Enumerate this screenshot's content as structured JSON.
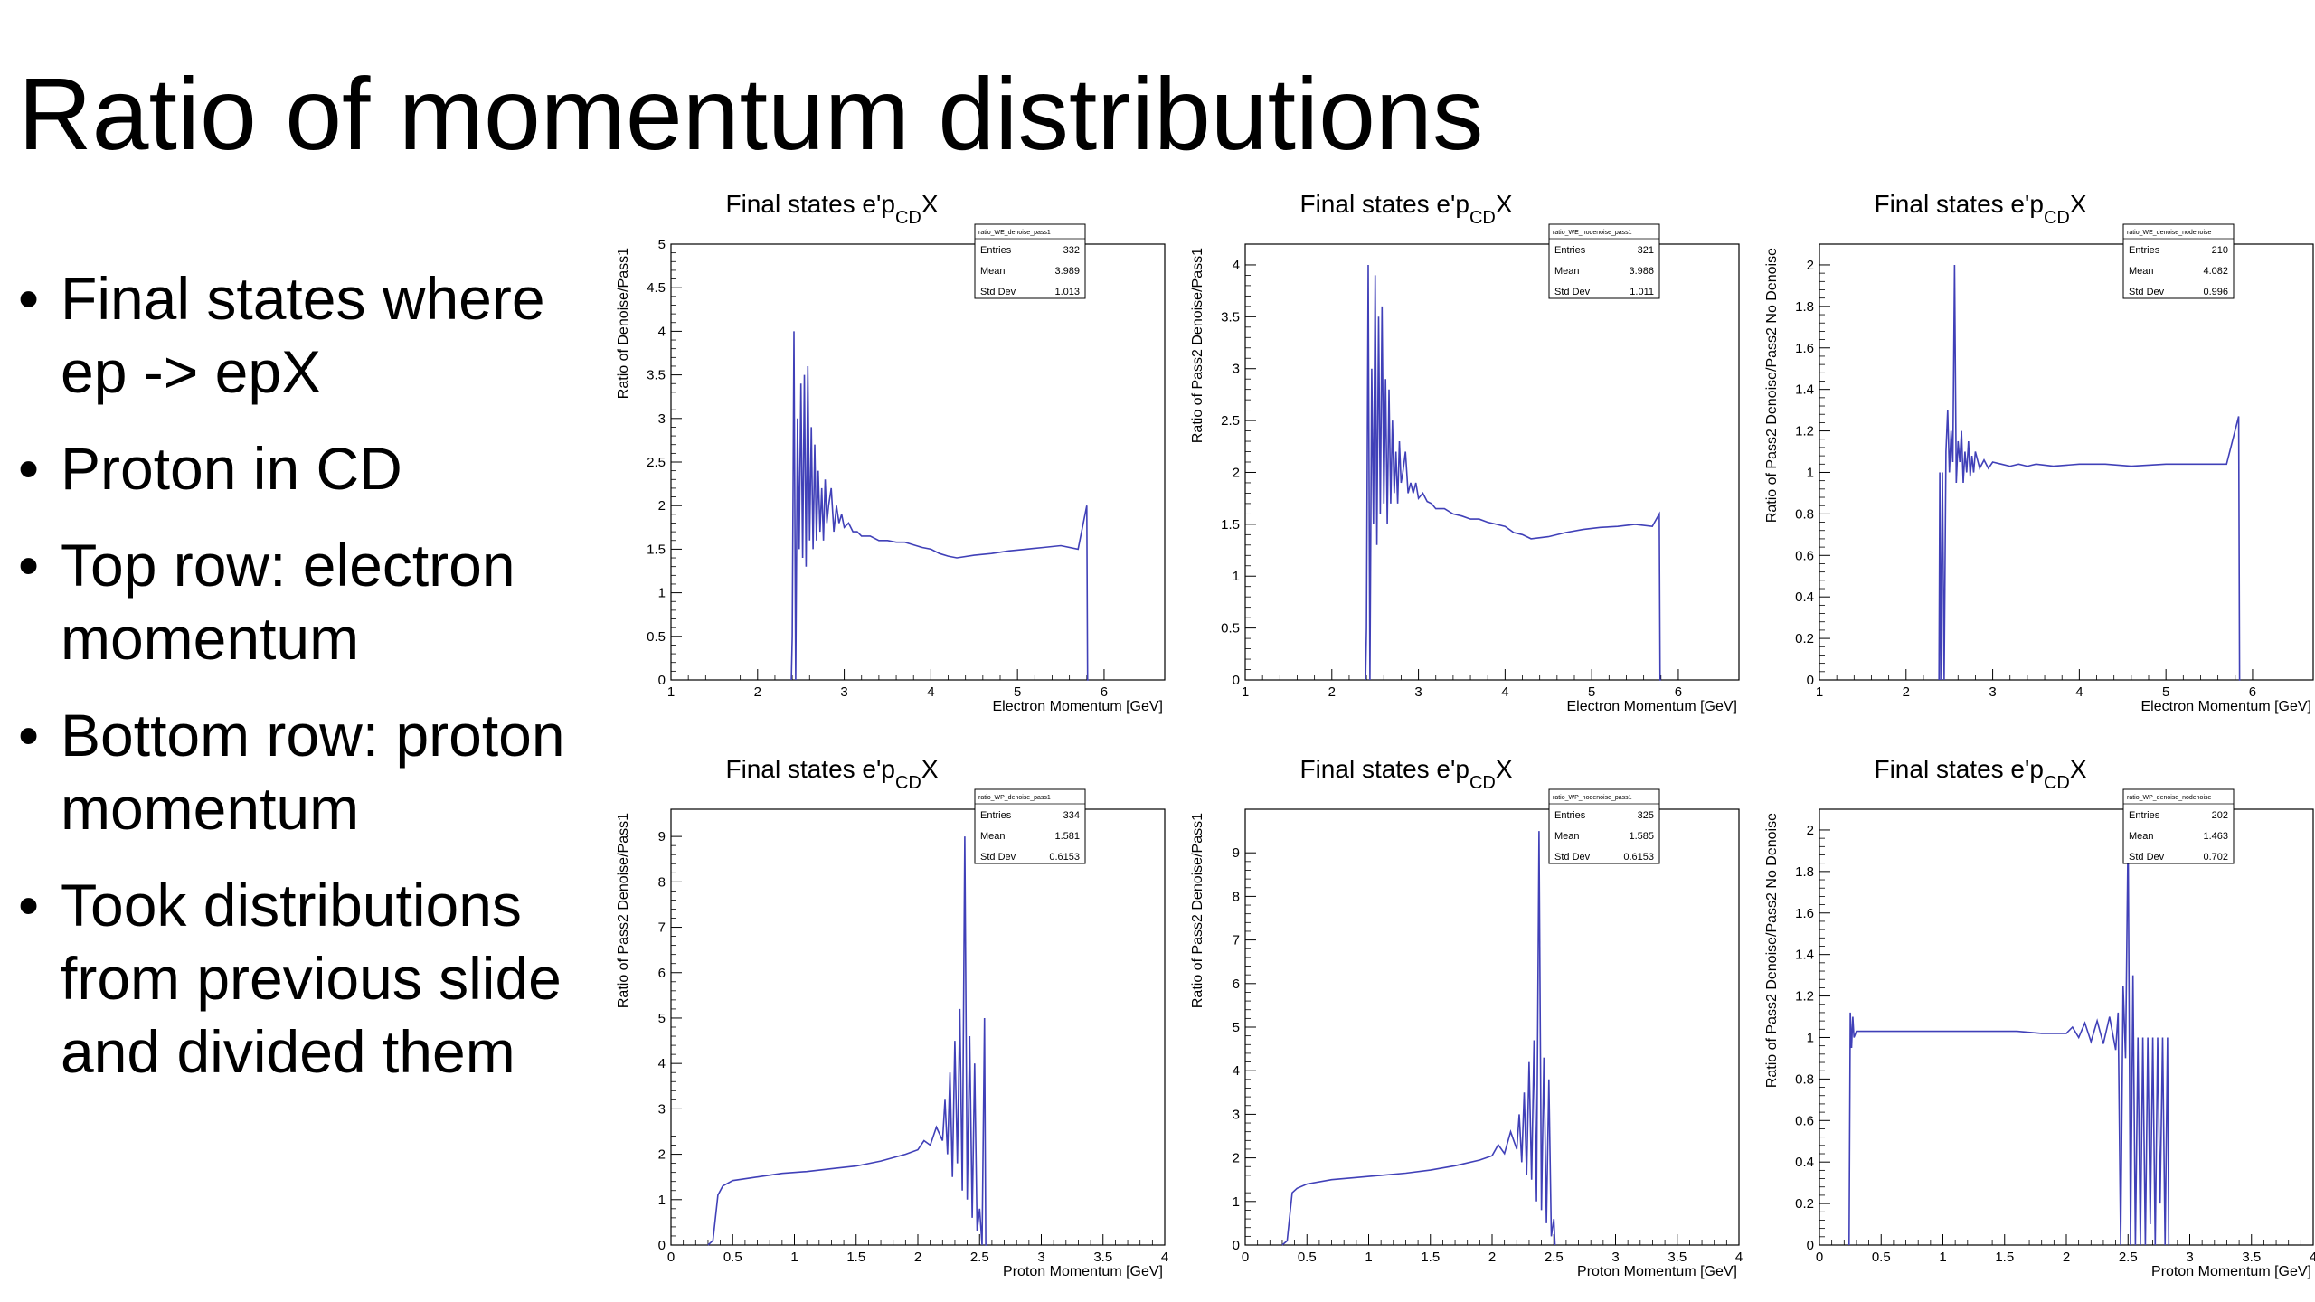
{
  "slide": {
    "title": "Ratio of momentum distributions",
    "bullets": [
      "Final states where ep -> epX",
      "Proton in CD",
      "Top row: electron momentum",
      "Bottom row: proton momentum",
      "Took distributions from previous slide and divided them"
    ]
  },
  "colors": {
    "line": "#4040b8",
    "frame": "#000000",
    "background": "#ffffff"
  },
  "chart_data": [
    {
      "type": "line",
      "title": "Final states e'p_CD X",
      "title_main": "Final states e'p",
      "title_sub": "CD",
      "title_end": "X",
      "xlabel": "Electron Momentum [GeV]",
      "ylabel": "Ratio of Denoise/Pass1",
      "xlim": [
        1,
        6.7
      ],
      "ylim": [
        0,
        5
      ],
      "xticks": [
        1,
        2,
        3,
        4,
        5,
        6
      ],
      "yticks": [
        0,
        0.5,
        1,
        1.5,
        2,
        2.5,
        3,
        3.5,
        4,
        4.5,
        5
      ],
      "xtick_labels": [
        "1",
        "2",
        "3",
        "4",
        "5",
        "6"
      ],
      "ytick_labels": [
        "0",
        "0.5",
        "1",
        "1.5",
        "2",
        "2.5",
        "3",
        "3.5",
        "4",
        "4.5",
        "5"
      ],
      "stats": {
        "name": "ratio_WE_denoise_pass1",
        "entries_label": "Entries",
        "entries": "332",
        "mean_label": "Mean",
        "mean": "3.989",
        "std_label": "Std Dev",
        "std": "1.013"
      },
      "x": [
        2.39,
        2.4,
        2.42,
        2.44,
        2.46,
        2.48,
        2.5,
        2.52,
        2.54,
        2.56,
        2.58,
        2.6,
        2.62,
        2.64,
        2.66,
        2.68,
        2.7,
        2.72,
        2.74,
        2.76,
        2.78,
        2.8,
        2.82,
        2.85,
        2.88,
        2.91,
        2.94,
        2.97,
        3.0,
        3.05,
        3.1,
        3.15,
        3.2,
        3.3,
        3.4,
        3.5,
        3.6,
        3.7,
        3.8,
        3.9,
        4.0,
        4.1,
        4.2,
        4.3,
        4.5,
        4.7,
        4.9,
        5.1,
        5.3,
        5.5,
        5.7,
        5.8,
        5.81,
        5.82
      ],
      "y": [
        0,
        0.5,
        4.0,
        0,
        3.0,
        1.5,
        3.4,
        1.4,
        3.5,
        1.3,
        3.6,
        1.6,
        2.9,
        1.5,
        2.7,
        1.6,
        2.4,
        1.7,
        2.2,
        1.6,
        2.3,
        1.8,
        2.0,
        2.2,
        1.7,
        2.0,
        1.8,
        1.9,
        1.75,
        1.8,
        1.7,
        1.7,
        1.65,
        1.65,
        1.6,
        1.6,
        1.58,
        1.58,
        1.55,
        1.52,
        1.5,
        1.45,
        1.42,
        1.4,
        1.43,
        1.45,
        1.48,
        1.5,
        1.52,
        1.54,
        1.5,
        2.0,
        0,
        0
      ]
    },
    {
      "type": "line",
      "title": "Final states e'p_CD X",
      "title_main": "Final states e'p",
      "title_sub": "CD",
      "title_end": "X",
      "xlabel": "Electron Momentum [GeV]",
      "ylabel": "Ratio of Pass2 Denoise/Pass1",
      "xlim": [
        1,
        6.7
      ],
      "ylim": [
        0,
        4.2
      ],
      "xticks": [
        1,
        2,
        3,
        4,
        5,
        6
      ],
      "yticks": [
        0,
        0.5,
        1,
        1.5,
        2,
        2.5,
        3,
        3.5,
        4
      ],
      "xtick_labels": [
        "1",
        "2",
        "3",
        "4",
        "5",
        "6"
      ],
      "ytick_labels": [
        "0",
        "0.5",
        "1",
        "1.5",
        "2",
        "2.5",
        "3",
        "3.5",
        "4"
      ],
      "stats": {
        "name": "ratio_WE_nodenoise_pass1",
        "entries_label": "Entries",
        "entries": "321",
        "mean_label": "Mean",
        "mean": "3.986",
        "std_label": "Std Dev",
        "std": "1.011"
      },
      "x": [
        2.39,
        2.4,
        2.42,
        2.44,
        2.46,
        2.48,
        2.5,
        2.52,
        2.54,
        2.56,
        2.58,
        2.6,
        2.62,
        2.64,
        2.66,
        2.68,
        2.7,
        2.72,
        2.74,
        2.76,
        2.78,
        2.8,
        2.82,
        2.85,
        2.88,
        2.91,
        2.94,
        2.97,
        3.0,
        3.05,
        3.1,
        3.15,
        3.2,
        3.3,
        3.4,
        3.5,
        3.6,
        3.7,
        3.8,
        3.9,
        4.0,
        4.1,
        4.2,
        4.3,
        4.5,
        4.7,
        4.9,
        5.1,
        5.3,
        5.5,
        5.7,
        5.78,
        5.79,
        5.8
      ],
      "y": [
        0,
        0.5,
        4.0,
        0,
        3.0,
        1.5,
        3.9,
        1.3,
        3.5,
        1.6,
        3.6,
        1.7,
        2.9,
        1.5,
        2.8,
        1.7,
        2.5,
        1.8,
        2.2,
        1.7,
        2.3,
        1.9,
        2.0,
        2.2,
        1.8,
        1.9,
        1.8,
        1.9,
        1.75,
        1.8,
        1.72,
        1.7,
        1.65,
        1.65,
        1.6,
        1.58,
        1.55,
        1.55,
        1.52,
        1.5,
        1.48,
        1.42,
        1.4,
        1.36,
        1.38,
        1.42,
        1.45,
        1.47,
        1.48,
        1.5,
        1.48,
        1.6,
        0,
        0
      ]
    },
    {
      "type": "line",
      "title": "Final states e'p_CD X",
      "title_main": "Final states e'p",
      "title_sub": "CD",
      "title_end": "X",
      "xlabel": "Electron Momentum [GeV]",
      "ylabel": "Ratio of Pass2 Denoise/Pass2 No Denoise",
      "xlim": [
        1,
        6.7
      ],
      "ylim": [
        0,
        2.1
      ],
      "xticks": [
        1,
        2,
        3,
        4,
        5,
        6
      ],
      "yticks": [
        0,
        0.2,
        0.4,
        0.6,
        0.8,
        1,
        1.2,
        1.4,
        1.6,
        1.8,
        2
      ],
      "xtick_labels": [
        "1",
        "2",
        "3",
        "4",
        "5",
        "6"
      ],
      "ytick_labels": [
        "0",
        "0.2",
        "0.4",
        "0.6",
        "0.8",
        "1",
        "1.2",
        "1.4",
        "1.6",
        "1.8",
        "2"
      ],
      "stats": {
        "name": "ratio_WE_denoise_nodenoise",
        "entries_label": "Entries",
        "entries": "210",
        "mean_label": "Mean",
        "mean": "4.082",
        "std_label": "Std Dev",
        "std": "0.996"
      },
      "x": [
        2.38,
        2.39,
        2.4,
        2.42,
        2.44,
        2.46,
        2.48,
        2.5,
        2.52,
        2.54,
        2.56,
        2.58,
        2.6,
        2.62,
        2.64,
        2.66,
        2.68,
        2.7,
        2.72,
        2.74,
        2.76,
        2.78,
        2.8,
        2.85,
        2.9,
        2.95,
        3.0,
        3.1,
        3.2,
        3.3,
        3.4,
        3.5,
        3.7,
        4.0,
        4.3,
        4.6,
        5.0,
        5.4,
        5.7,
        5.84,
        5.85,
        5.86
      ],
      "y": [
        0,
        1.0,
        0,
        1.0,
        0,
        1.1,
        1.3,
        1.0,
        1.2,
        1.05,
        2.0,
        0.95,
        1.15,
        1.05,
        1.2,
        0.95,
        1.1,
        1.0,
        1.15,
        0.98,
        1.08,
        1.0,
        1.1,
        1.02,
        1.06,
        1.02,
        1.05,
        1.04,
        1.03,
        1.04,
        1.03,
        1.04,
        1.03,
        1.04,
        1.04,
        1.03,
        1.04,
        1.04,
        1.04,
        1.27,
        0,
        0
      ]
    },
    {
      "type": "line",
      "title": "Final states e'p_CD X",
      "title_main": "Final states e'p",
      "title_sub": "CD",
      "title_end": "X",
      "xlabel": "Proton Momentum [GeV]",
      "ylabel": "Ratio of Pass2 Denoise/Pass1",
      "xlim": [
        0,
        4
      ],
      "ylim": [
        0,
        9.6
      ],
      "xticks": [
        0,
        0.5,
        1,
        1.5,
        2,
        2.5,
        3,
        3.5,
        4
      ],
      "yticks": [
        0,
        1,
        2,
        3,
        4,
        5,
        6,
        7,
        8,
        9
      ],
      "xtick_labels": [
        "0",
        "0.5",
        "1",
        "1.5",
        "2",
        "2.5",
        "3",
        "3.5",
        "4"
      ],
      "ytick_labels": [
        "0",
        "1",
        "2",
        "3",
        "4",
        "5",
        "6",
        "7",
        "8",
        "9"
      ],
      "stats": {
        "name": "ratio_WP_denoise_pass1",
        "entries_label": "Entries",
        "entries": "334",
        "mean_label": "Mean",
        "mean": "1.581",
        "std_label": "Std Dev",
        "std": "0.6153"
      },
      "x": [
        0.3,
        0.34,
        0.38,
        0.42,
        0.5,
        0.7,
        0.9,
        1.1,
        1.3,
        1.5,
        1.7,
        1.9,
        2.0,
        2.05,
        2.1,
        2.15,
        2.2,
        2.22,
        2.24,
        2.26,
        2.28,
        2.3,
        2.32,
        2.34,
        2.36,
        2.38,
        2.4,
        2.42,
        2.44,
        2.46,
        2.48,
        2.5,
        2.52,
        2.54,
        2.55,
        2.56
      ],
      "y": [
        0,
        0.1,
        1.1,
        1.3,
        1.42,
        1.5,
        1.58,
        1.62,
        1.68,
        1.74,
        1.85,
        2.0,
        2.1,
        2.3,
        2.2,
        2.6,
        2.3,
        3.2,
        2.0,
        3.8,
        1.5,
        4.5,
        1.8,
        5.2,
        1.2,
        9.0,
        1.0,
        4.6,
        0.6,
        4.0,
        0.3,
        0.8,
        0,
        5.0,
        0,
        0
      ]
    },
    {
      "type": "line",
      "title": "Final states e'p_CD X",
      "title_main": "Final states e'p",
      "title_sub": "CD",
      "title_end": "X",
      "xlabel": "Proton Momentum [GeV]",
      "ylabel": "Ratio of Pass2 Denoise/Pass1",
      "xlim": [
        0,
        4
      ],
      "ylim": [
        0,
        10
      ],
      "xticks": [
        0,
        0.5,
        1,
        1.5,
        2,
        2.5,
        3,
        3.5,
        4
      ],
      "yticks": [
        0,
        1,
        2,
        3,
        4,
        5,
        6,
        7,
        8,
        9
      ],
      "xtick_labels": [
        "0",
        "0.5",
        "1",
        "1.5",
        "2",
        "2.5",
        "3",
        "3.5",
        "4"
      ],
      "ytick_labels": [
        "0",
        "1",
        "2",
        "3",
        "4",
        "5",
        "6",
        "7",
        "8",
        "9"
      ],
      "stats": {
        "name": "ratio_WP_nodenoise_pass1",
        "entries_label": "Entries",
        "entries": "325",
        "mean_label": "Mean",
        "mean": "1.585",
        "std_label": "Std Dev",
        "std": "0.6153"
      },
      "x": [
        0.3,
        0.34,
        0.38,
        0.42,
        0.5,
        0.7,
        0.9,
        1.1,
        1.3,
        1.5,
        1.7,
        1.9,
        2.0,
        2.05,
        2.1,
        2.15,
        2.2,
        2.22,
        2.24,
        2.26,
        2.28,
        2.3,
        2.32,
        2.34,
        2.36,
        2.38,
        2.4,
        2.42,
        2.44,
        2.46,
        2.48,
        2.5,
        2.51
      ],
      "y": [
        0,
        0.1,
        1.2,
        1.3,
        1.4,
        1.5,
        1.55,
        1.6,
        1.65,
        1.72,
        1.82,
        1.95,
        2.05,
        2.3,
        2.1,
        2.6,
        2.2,
        3.0,
        1.9,
        3.5,
        1.6,
        4.2,
        1.5,
        4.7,
        1.0,
        9.5,
        0.8,
        4.3,
        0.5,
        3.8,
        0.2,
        0.6,
        0
      ]
    },
    {
      "type": "line",
      "title": "Final states e'p_CD X",
      "title_main": "Final states e'p",
      "title_sub": "CD",
      "title_end": "X",
      "xlabel": "Proton Momentum [GeV]",
      "ylabel": "Ratio of Pass2 Denoise/Pass2 No Denoise",
      "xlim": [
        0,
        4
      ],
      "ylim": [
        0,
        2.1
      ],
      "xticks": [
        0,
        0.5,
        1,
        1.5,
        2,
        2.5,
        3,
        3.5,
        4
      ],
      "yticks": [
        0,
        0.2,
        0.4,
        0.6,
        0.8,
        1,
        1.2,
        1.4,
        1.6,
        1.8,
        2
      ],
      "xtick_labels": [
        "0",
        "0.5",
        "1",
        "1.5",
        "2",
        "2.5",
        "3",
        "3.5",
        "4"
      ],
      "ytick_labels": [
        "0",
        "0.2",
        "0.4",
        "0.6",
        "0.8",
        "1",
        "1.2",
        "1.4",
        "1.6",
        "1.8",
        "2"
      ],
      "stats": {
        "name": "ratio_WP_denoise_nodenoise",
        "entries_label": "Entries",
        "entries": "202",
        "mean_label": "Mean",
        "mean": "1.463",
        "std_label": "Std Dev",
        "std": "0.702"
      },
      "x": [
        0.24,
        0.25,
        0.26,
        0.27,
        0.28,
        0.3,
        0.4,
        0.6,
        0.8,
        1.0,
        1.2,
        1.4,
        1.6,
        1.8,
        2.0,
        2.05,
        2.1,
        2.15,
        2.2,
        2.25,
        2.3,
        2.35,
        2.4,
        2.42,
        2.44,
        2.46,
        2.48,
        2.5,
        2.52,
        2.54,
        2.56,
        2.58,
        2.6,
        2.62,
        2.64,
        2.66,
        2.68,
        2.7,
        2.72,
        2.74,
        2.76,
        2.78,
        2.8,
        2.82,
        2.83
      ],
      "y": [
        0,
        1.12,
        0.95,
        1.1,
        1.0,
        1.03,
        1.03,
        1.03,
        1.03,
        1.03,
        1.03,
        1.03,
        1.03,
        1.02,
        1.02,
        1.05,
        1.0,
        1.07,
        0.98,
        1.08,
        0.97,
        1.1,
        0.94,
        1.12,
        0,
        1.25,
        0.9,
        2.0,
        0,
        1.3,
        0,
        1.0,
        0,
        1.0,
        0,
        1.0,
        0.1,
        1.0,
        0,
        1.0,
        0.2,
        1.0,
        0,
        1.0,
        0
      ]
    }
  ]
}
